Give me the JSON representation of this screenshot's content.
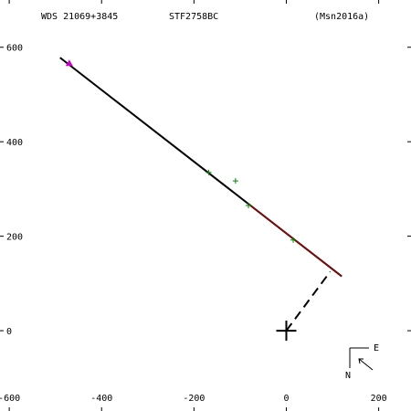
{
  "header": {
    "wds": "WDS 21069+3845",
    "pair": "STF2758BC",
    "reference": "(Msn2016a)"
  },
  "compass": {
    "east_label": "E",
    "north_label": "N"
  },
  "chart_data": {
    "type": "scatter",
    "title": "",
    "xlabel": "",
    "ylabel": "",
    "xlim": [
      -620,
      270
    ],
    "ylim": [
      -170,
      700
    ],
    "x_ticks": [
      -600,
      -400,
      -200,
      0,
      200
    ],
    "y_ticks": [
      0,
      200,
      400,
      600
    ],
    "grid": false,
    "primary": {
      "x": 0,
      "y": 0,
      "marker": "plus"
    },
    "orbit": {
      "color": "#000000",
      "from": [
        -490,
        578
      ],
      "to": [
        120,
        115
      ]
    },
    "orbit_segment": {
      "color": "#cc0000",
      "from": [
        -80,
        267
      ],
      "to": [
        120,
        115
      ]
    },
    "periastron_link": {
      "style": "dashed",
      "from": [
        0,
        0
      ],
      "to": [
        95,
        125
      ]
    },
    "observations": [
      {
        "x": -470,
        "y": 566,
        "marker": "triangle",
        "color": "#cc00cc"
      },
      {
        "x": -168,
        "y": 335,
        "marker": "plus",
        "color": "#008800"
      },
      {
        "x": -110,
        "y": 317,
        "marker": "plus",
        "color": "#008800"
      },
      {
        "x": -82,
        "y": 265,
        "marker": "plus",
        "color": "#008800"
      },
      {
        "x": 15,
        "y": 192,
        "marker": "plus",
        "color": "#008800"
      }
    ],
    "residual_color": "#cc0000"
  }
}
